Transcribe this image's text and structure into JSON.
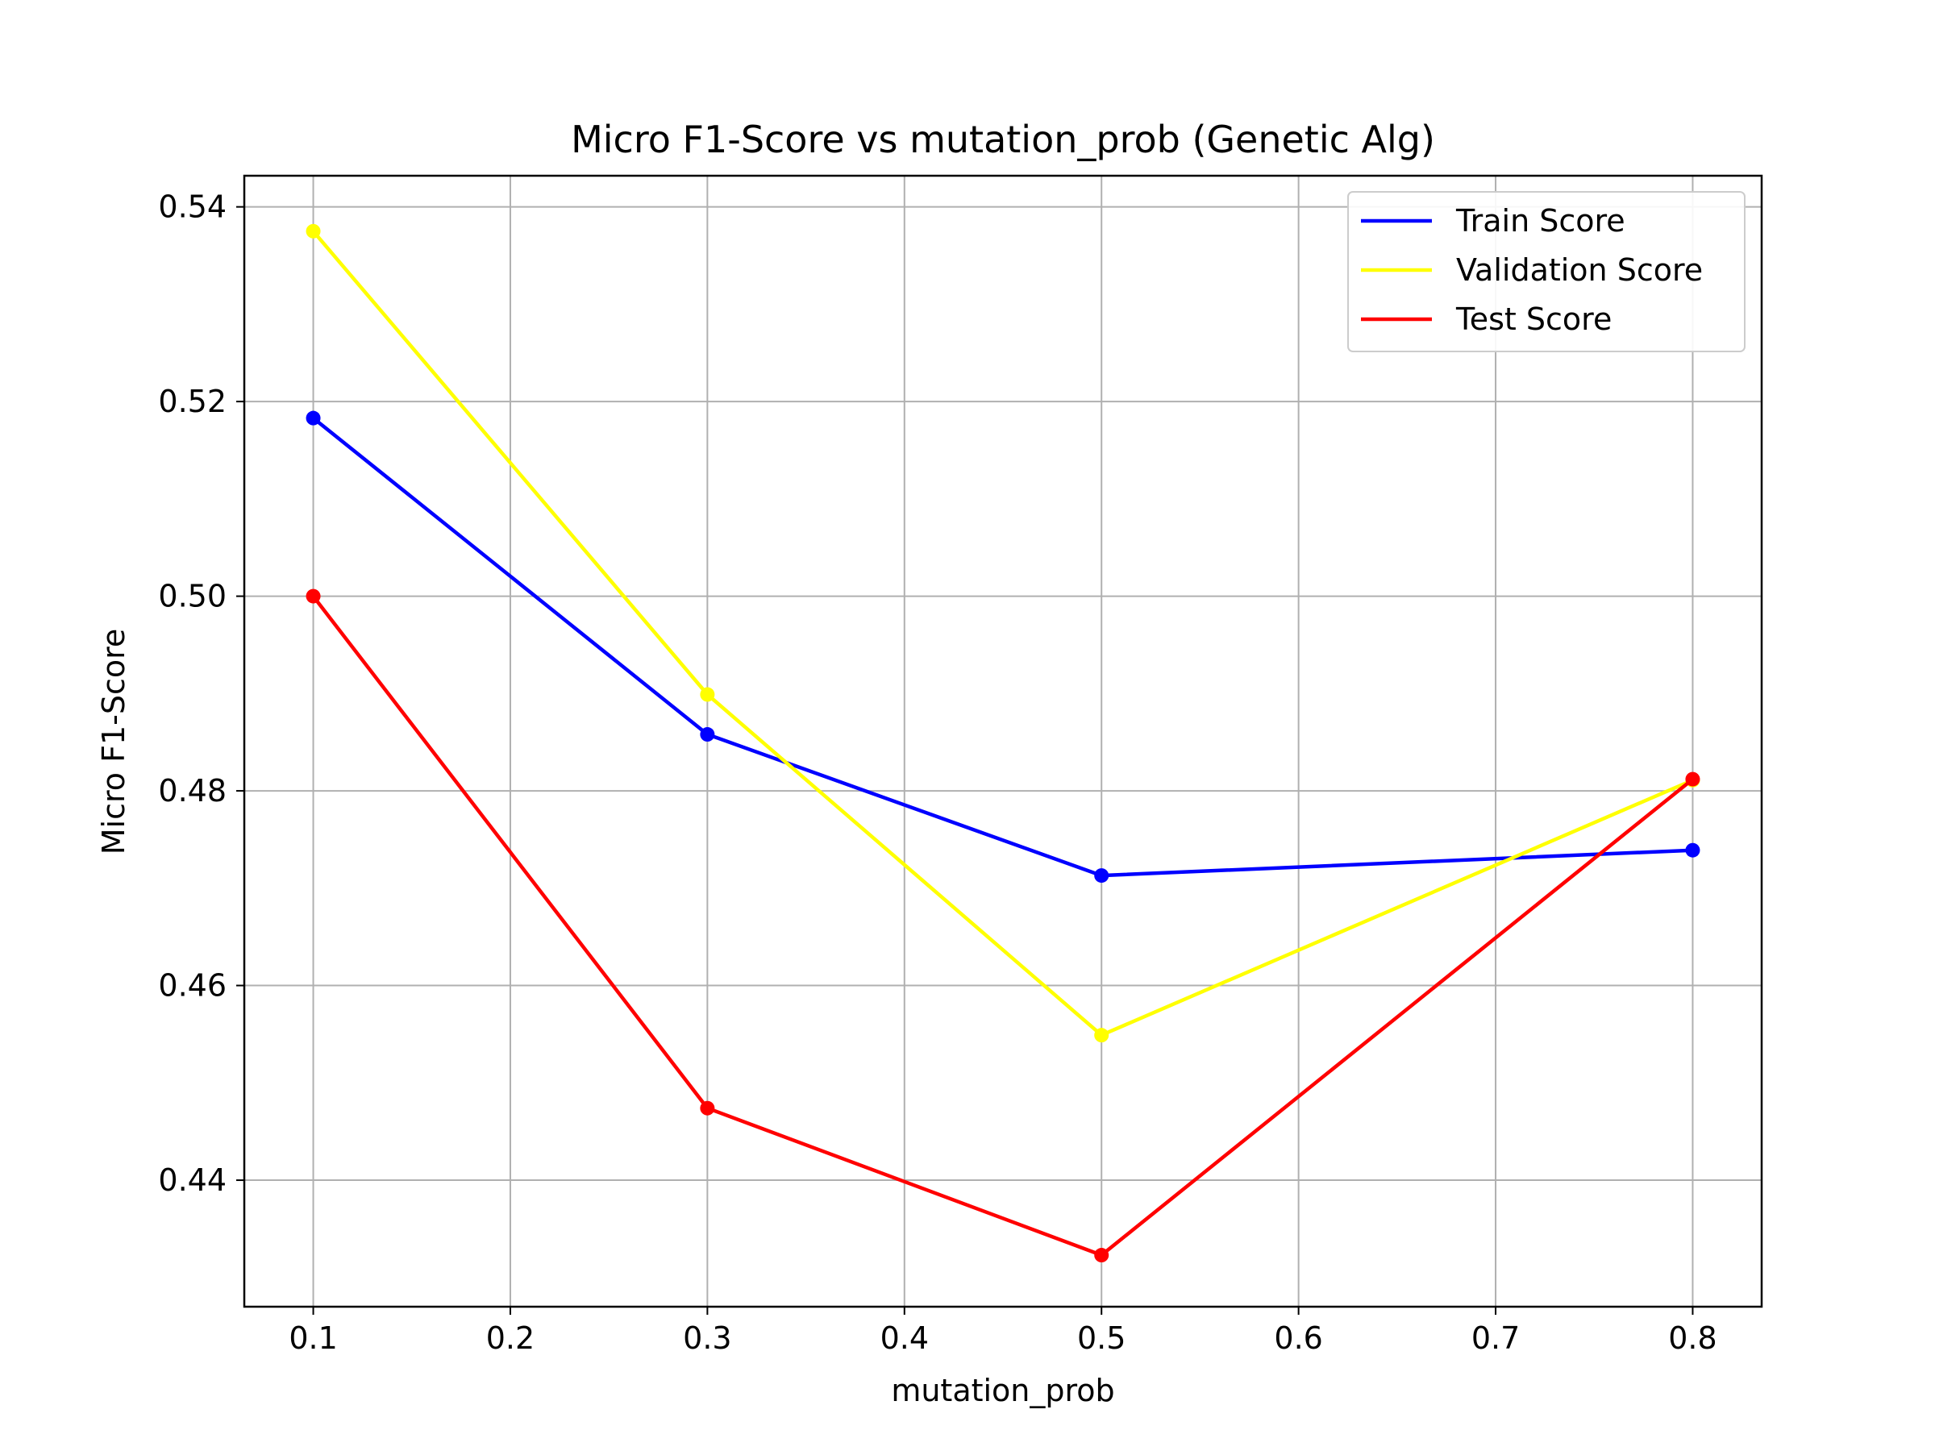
{
  "chart_data": {
    "type": "line",
    "title": "Micro F1-Score vs mutation_prob (Genetic Alg)",
    "xlabel": "mutation_prob",
    "ylabel": "Micro F1-Score",
    "x": [
      0.1,
      0.3,
      0.5,
      0.8
    ],
    "xlim": [
      0.065,
      0.835
    ],
    "ylim": [
      0.427,
      0.5432
    ],
    "xticks": [
      0.1,
      0.2,
      0.3,
      0.4,
      0.5,
      0.6,
      0.7,
      0.8
    ],
    "xtick_labels": [
      "0.1",
      "0.2",
      "0.3",
      "0.4",
      "0.5",
      "0.6",
      "0.7",
      "0.8"
    ],
    "yticks": [
      0.44,
      0.46,
      0.48,
      0.5,
      0.52,
      0.54
    ],
    "ytick_labels": [
      "0.44",
      "0.46",
      "0.48",
      "0.50",
      "0.52",
      "0.54"
    ],
    "grid": true,
    "legend_position": "top-right",
    "series": [
      {
        "name": "Train Score",
        "color": "#0000ff",
        "values": [
          0.5183,
          0.4858,
          0.4713,
          0.4739
        ]
      },
      {
        "name": "Validation Score",
        "color": "#ffff00",
        "values": [
          0.5375,
          0.4899,
          0.4549,
          0.4811
        ]
      },
      {
        "name": "Test Score",
        "color": "#ff0000",
        "values": [
          0.5,
          0.4474,
          0.4323,
          0.4812
        ]
      }
    ]
  }
}
